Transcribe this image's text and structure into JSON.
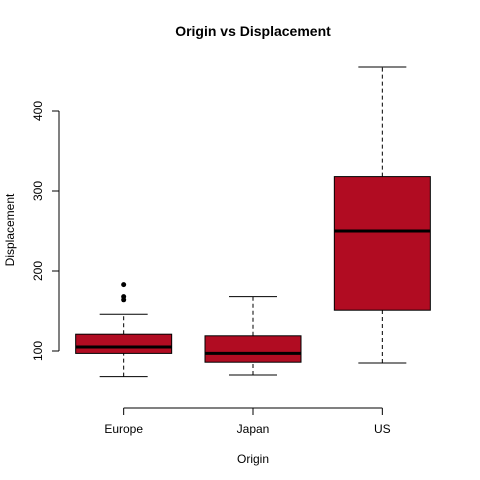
{
  "chart_data": {
    "type": "box",
    "title": "Origin vs Displacement",
    "xlabel": "Origin",
    "ylabel": "Displacement",
    "categories": [
      "Europe",
      "Japan",
      "US"
    ],
    "ylim": [
      45,
      465
    ],
    "yticks": [
      100,
      200,
      300,
      400
    ],
    "box_color": "#b10c22",
    "boxes": [
      {
        "category": "Europe",
        "whisker_low": 68,
        "q1": 97,
        "median": 105,
        "q3": 121,
        "whisker_high": 146,
        "outliers": [
          164,
          168,
          183
        ]
      },
      {
        "category": "Japan",
        "whisker_low": 70,
        "q1": 86,
        "median": 97,
        "q3": 119,
        "whisker_high": 168,
        "outliers": []
      },
      {
        "category": "US",
        "whisker_low": 85,
        "q1": 151,
        "median": 250,
        "q3": 318,
        "whisker_high": 455,
        "outliers": []
      }
    ]
  }
}
